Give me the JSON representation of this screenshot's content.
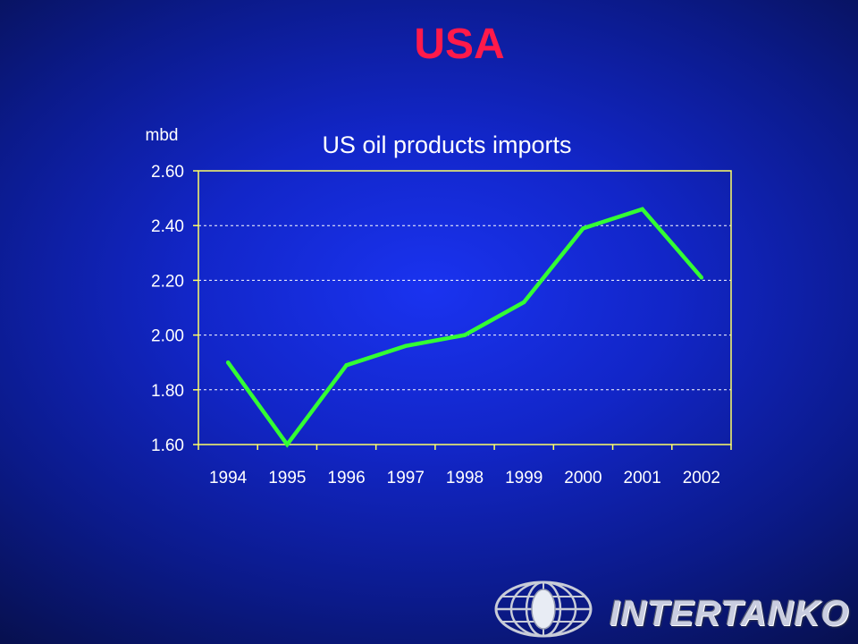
{
  "slide": {
    "title": "USA",
    "logo_text": "INTERTANKO",
    "logo_icon": "globe-icon"
  },
  "colors": {
    "title": "#ff1a4a",
    "plot_border": "#ffff66",
    "line": "#33ff33",
    "text": "#ffffff"
  },
  "chart_data": {
    "type": "line",
    "title": "US oil products imports",
    "ylabel": "mbd",
    "xlabel": "",
    "categories": [
      "1994",
      "1995",
      "1996",
      "1997",
      "1998",
      "1999",
      "2000",
      "2001",
      "2002"
    ],
    "series": [
      {
        "values": [
          1.9,
          1.6,
          1.89,
          1.96,
          2.0,
          2.12,
          2.39,
          2.46,
          2.21
        ]
      }
    ],
    "ylim": [
      1.6,
      2.6
    ],
    "yticks": [
      "1.60",
      "1.80",
      "2.00",
      "2.20",
      "2.40",
      "2.60"
    ],
    "grid": "horizontal dashed",
    "legend": "none"
  }
}
